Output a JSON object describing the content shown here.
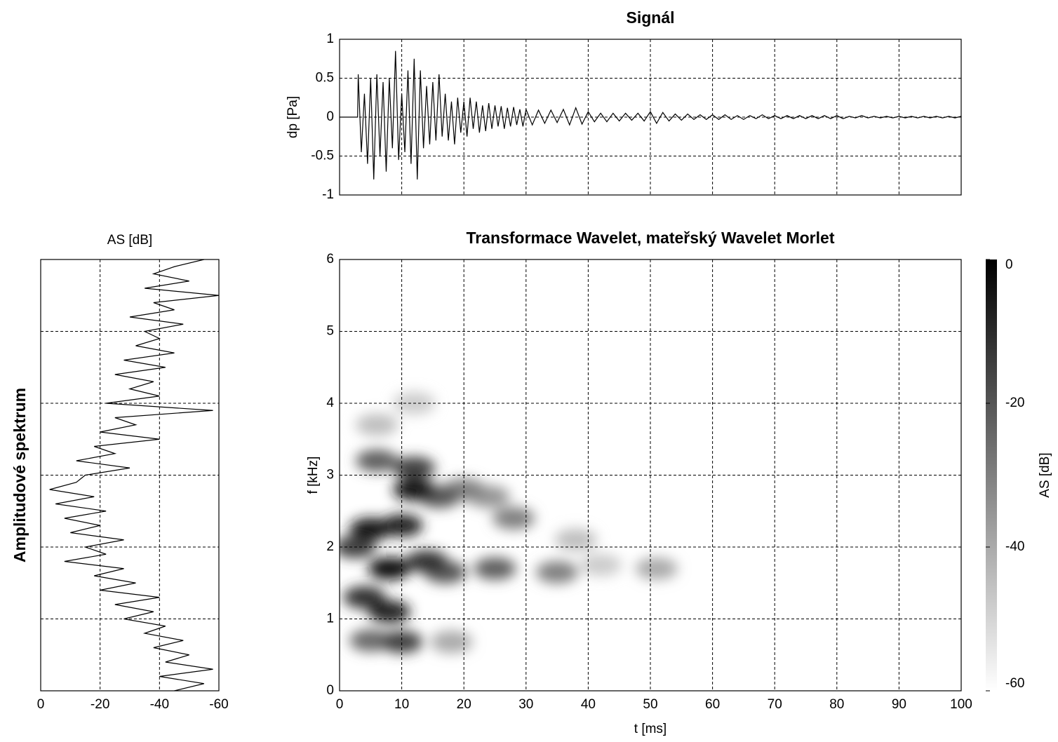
{
  "chart_data": [
    {
      "type": "line",
      "title": "Signál",
      "ylabel": "dp [Pa]",
      "color": "#000000",
      "grid": true,
      "xlim": [
        0,
        100
      ],
      "xticks": [
        0,
        10,
        20,
        30,
        40,
        50,
        60,
        70,
        80,
        90,
        100
      ],
      "xtick_labels": false,
      "ylim": [
        -1,
        1
      ],
      "yticks": [
        -1,
        -0.5,
        0,
        0.5,
        1
      ],
      "x": [
        0,
        2.9,
        3,
        3.5,
        4,
        4.5,
        5,
        5.5,
        6,
        6.5,
        7,
        7.5,
        8,
        8.5,
        9,
        9.5,
        10,
        10.5,
        11,
        11.5,
        12,
        12.5,
        13,
        13.5,
        14,
        14.5,
        15,
        15.5,
        16,
        16.5,
        17,
        17.5,
        18,
        18.5,
        19,
        19.5,
        20,
        20.5,
        21,
        21.5,
        22,
        22.5,
        23,
        23.5,
        24,
        24.5,
        25,
        25.5,
        26,
        26.5,
        27,
        27.5,
        28,
        28.5,
        29,
        29.5,
        30,
        31,
        32,
        33,
        34,
        35,
        36,
        37,
        38,
        39,
        40,
        41,
        42,
        43,
        44,
        45,
        46,
        47,
        48,
        49,
        50,
        51,
        52,
        53,
        54,
        55,
        56,
        57,
        58,
        59,
        60,
        61,
        62,
        63,
        64,
        65,
        66,
        67,
        68,
        69,
        70,
        71,
        72,
        73,
        74,
        75,
        76,
        77,
        78,
        79,
        80,
        81,
        82,
        83,
        84,
        85,
        86,
        87,
        88,
        89,
        90,
        91,
        92,
        93,
        94,
        95,
        96,
        97,
        98,
        99,
        100
      ],
      "values": [
        0,
        0,
        0.55,
        -0.45,
        0.3,
        -0.6,
        0.5,
        -0.8,
        0.55,
        -0.5,
        0.45,
        -0.7,
        0.5,
        -0.4,
        0.85,
        -0.55,
        0.3,
        -0.45,
        0.6,
        -0.6,
        0.75,
        -0.8,
        0.6,
        -0.4,
        0.4,
        -0.35,
        0.45,
        -0.3,
        0.55,
        -0.25,
        0.3,
        -0.3,
        0.2,
        -0.35,
        0.25,
        -0.2,
        0.2,
        -0.25,
        0.25,
        -0.15,
        0.2,
        -0.2,
        0.15,
        -0.18,
        0.18,
        -0.15,
        0.15,
        -0.12,
        0.14,
        -0.15,
        0.12,
        -0.12,
        0.13,
        -0.1,
        0.1,
        -0.12,
        0.1,
        -0.1,
        0.09,
        -0.08,
        0.09,
        -0.07,
        0.1,
        -0.1,
        0.12,
        -0.09,
        0.07,
        -0.06,
        0.05,
        -0.06,
        0.05,
        -0.05,
        0.05,
        -0.04,
        0.05,
        -0.05,
        0.07,
        -0.08,
        0.06,
        -0.05,
        0.04,
        -0.04,
        0.04,
        -0.03,
        0.03,
        -0.03,
        0.03,
        -0.03,
        0.03,
        -0.03,
        0.02,
        -0.03,
        0.02,
        -0.02,
        0.03,
        -0.02,
        0.02,
        -0.02,
        0.02,
        -0.02,
        0.02,
        -0.02,
        0.02,
        -0.02,
        0.02,
        -0.02,
        0.02,
        -0.02,
        0.01,
        -0.01,
        0.02,
        -0.01,
        0.01,
        -0.01,
        0.01,
        -0.01,
        0.01,
        -0.01,
        0.01,
        -0.01,
        0.01,
        -0.01,
        0.01,
        -0.01,
        0.01,
        -0.01,
        0.01
      ]
    },
    {
      "type": "line",
      "orientation": "horizontal",
      "title": "AS [dB]",
      "ylabel": "Amplitudové spektrum",
      "color": "#000000",
      "grid": true,
      "xlim": [
        0,
        -60
      ],
      "xticks": [
        0,
        -20,
        -40,
        -60
      ],
      "ylim": [
        0,
        6
      ],
      "yticks": [
        1,
        2,
        3,
        4,
        5
      ],
      "ytick_labels": false,
      "frequencies": [
        0,
        0.1,
        0.2,
        0.3,
        0.4,
        0.5,
        0.6,
        0.7,
        0.8,
        0.9,
        1,
        1.1,
        1.2,
        1.3,
        1.4,
        1.5,
        1.6,
        1.7,
        1.8,
        1.9,
        2,
        2.1,
        2.2,
        2.3,
        2.4,
        2.5,
        2.6,
        2.7,
        2.8,
        2.9,
        3,
        3.1,
        3.2,
        3.3,
        3.4,
        3.5,
        3.6,
        3.7,
        3.8,
        3.9,
        4,
        4.1,
        4.2,
        4.3,
        4.4,
        4.5,
        4.6,
        4.7,
        4.8,
        4.9,
        5,
        5.1,
        5.2,
        5.3,
        5.4,
        5.5,
        5.6,
        5.7,
        5.8,
        5.9,
        6
      ],
      "values": [
        -45,
        -55,
        -40,
        -58,
        -42,
        -50,
        -38,
        -48,
        -35,
        -42,
        -28,
        -38,
        -25,
        -40,
        -20,
        -32,
        -18,
        -28,
        -8,
        -22,
        -15,
        -28,
        -10,
        -20,
        -8,
        -22,
        -5,
        -18,
        -3,
        -12,
        -15,
        -30,
        -12,
        -25,
        -18,
        -40,
        -20,
        -32,
        -25,
        -58,
        -22,
        -40,
        -30,
        -38,
        -25,
        -42,
        -28,
        -45,
        -32,
        -40,
        -35,
        -48,
        -30,
        -45,
        -38,
        -60,
        -35,
        -50,
        -38,
        -45,
        -55
      ]
    },
    {
      "type": "heatmap",
      "title": "Transformace Wavelet, mateřský Wavelet Morlet",
      "xlabel": "t [ms]",
      "ylabel": "f [kHz]",
      "grid": true,
      "xlim": [
        0,
        100
      ],
      "xticks": [
        0,
        10,
        20,
        30,
        40,
        50,
        60,
        70,
        80,
        90,
        100
      ],
      "ylim": [
        0,
        6
      ],
      "yticks": [
        0,
        1,
        2,
        3,
        4,
        5,
        6
      ],
      "clim": [
        -60,
        0
      ],
      "cticks": [
        0,
        -20,
        -40,
        -60
      ],
      "colorbar_label": "AS [dB]",
      "x": [
        8,
        5,
        10,
        6,
        12,
        12,
        16,
        4,
        8,
        14,
        20,
        25,
        28,
        24,
        35,
        38,
        51,
        10,
        5,
        18,
        6,
        12,
        2.5,
        17,
        42
      ],
      "y": [
        1.7,
        2.25,
        2.3,
        3.2,
        2.8,
        3.1,
        2.7,
        1.3,
        1.1,
        1.8,
        2.8,
        1.7,
        2.4,
        2.7,
        1.65,
        2.1,
        1.7,
        0.68,
        0.7,
        0.68,
        3.7,
        4,
        2,
        1.65,
        1.75
      ],
      "values": [
        -2,
        -5,
        -8,
        -22,
        -5,
        -15,
        -20,
        -12,
        -8,
        -12,
        -30,
        -22,
        -30,
        -35,
        -30,
        -45,
        -40,
        -15,
        -25,
        -40,
        -45,
        -48,
        -15,
        -20,
        -48
      ]
    }
  ]
}
